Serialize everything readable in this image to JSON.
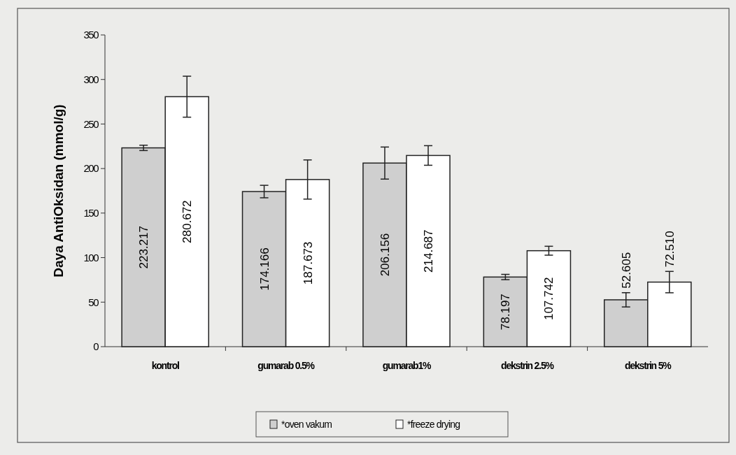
{
  "chart_data": {
    "type": "bar",
    "ylabel": "Daya AntiOksidan (mmol/g)",
    "categories": [
      "kontrol",
      "gumarab 0.5%",
      "gumarab1%",
      "dekstrin 2.5%",
      "dekstrin 5%"
    ],
    "series": [
      {
        "name": "*oven vakum",
        "color": "#cfcfcf",
        "values": [
          223.217,
          174.166,
          206.156,
          78.197,
          52.605
        ],
        "errors": [
          3,
          7,
          18,
          3,
          8
        ]
      },
      {
        "name": "*freeze drying",
        "color": "#ffffff",
        "values": [
          280.672,
          187.673,
          214.687,
          107.742,
          72.51
        ],
        "value_labels": [
          "280.672",
          "187.673",
          "214.687",
          "107.742",
          "72.510"
        ],
        "errors": [
          23,
          22,
          11,
          5,
          12
        ]
      }
    ],
    "data_labels": true,
    "ylim": [
      0,
      350
    ],
    "yticks": [
      0,
      50,
      100,
      150,
      200,
      250,
      300,
      350
    ],
    "legend": "bottom",
    "grid": false
  }
}
